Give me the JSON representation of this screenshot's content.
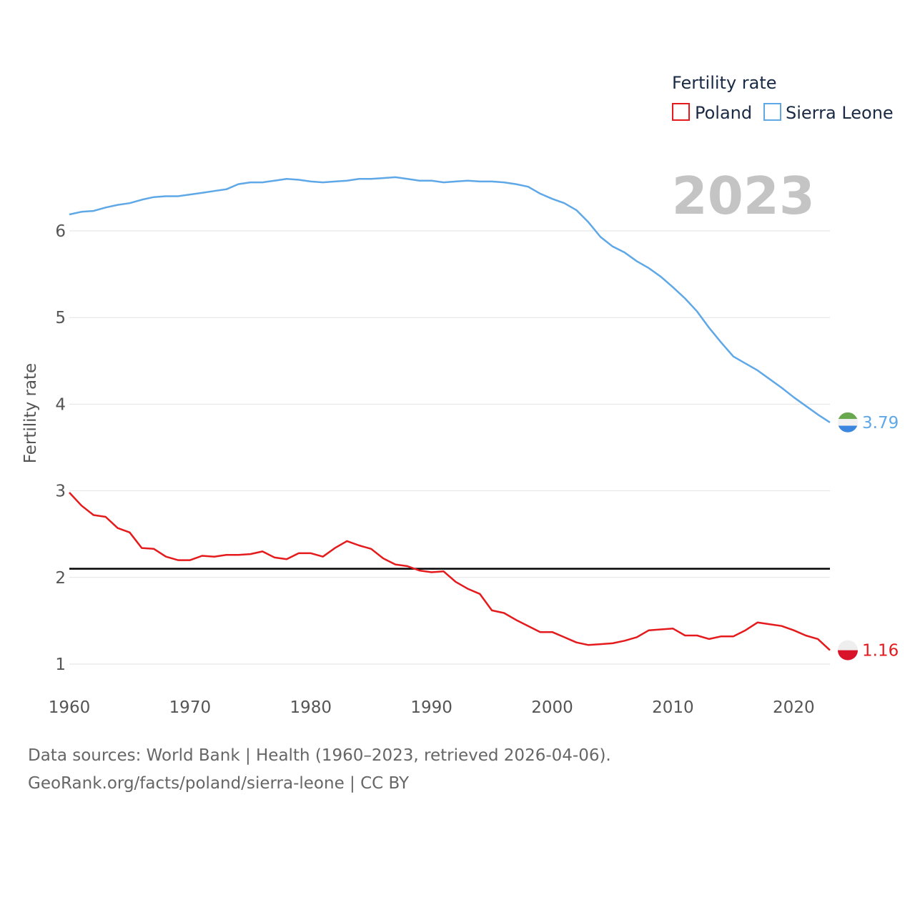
{
  "colors": {
    "poland": "#e41a1c",
    "sierra_leone": "#5fa8e8",
    "replacement_line": "#000000",
    "grid": "#e2e2e2",
    "year_text": "#c4c4c4"
  },
  "chart_data": {
    "type": "line",
    "title": "",
    "xlabel": "",
    "ylabel": "Fertility rate",
    "xlim": [
      1960,
      2023
    ],
    "ylim": [
      0.8,
      6.7
    ],
    "x_ticks": [
      1960,
      1970,
      1980,
      1990,
      2000,
      2010,
      2020
    ],
    "y_ticks": [
      1,
      2,
      3,
      4,
      5,
      6
    ],
    "x_tick_labels": [
      "1960",
      "1970",
      "1980",
      "1990",
      "2000",
      "2010",
      "2020"
    ],
    "y_tick_labels": [
      "1",
      "2",
      "3",
      "4",
      "5",
      "6"
    ],
    "current_year": "2023",
    "legend": {
      "title": "Fertility rate",
      "position": "top-right",
      "entries": [
        "Poland",
        "Sierra Leone"
      ]
    },
    "reference_line": {
      "y": 2.1,
      "color": "#000000"
    },
    "x": [
      1960,
      1961,
      1962,
      1963,
      1964,
      1965,
      1966,
      1967,
      1968,
      1969,
      1970,
      1971,
      1972,
      1973,
      1974,
      1975,
      1976,
      1977,
      1978,
      1979,
      1980,
      1981,
      1982,
      1983,
      1984,
      1985,
      1986,
      1987,
      1988,
      1989,
      1990,
      1991,
      1992,
      1993,
      1994,
      1995,
      1996,
      1997,
      1998,
      1999,
      2000,
      2001,
      2002,
      2003,
      2004,
      2005,
      2006,
      2007,
      2008,
      2009,
      2010,
      2011,
      2012,
      2013,
      2014,
      2015,
      2016,
      2017,
      2018,
      2019,
      2020,
      2021,
      2022,
      2023
    ],
    "series": [
      {
        "name": "Poland",
        "color": "#e41a1c",
        "end_label": "1.16",
        "values": [
          2.98,
          2.83,
          2.72,
          2.7,
          2.57,
          2.52,
          2.34,
          2.33,
          2.24,
          2.2,
          2.2,
          2.25,
          2.24,
          2.26,
          2.26,
          2.27,
          2.3,
          2.23,
          2.21,
          2.28,
          2.28,
          2.24,
          2.34,
          2.42,
          2.37,
          2.33,
          2.22,
          2.15,
          2.13,
          2.08,
          2.06,
          2.07,
          1.95,
          1.87,
          1.81,
          1.62,
          1.59,
          1.51,
          1.44,
          1.37,
          1.37,
          1.31,
          1.25,
          1.22,
          1.23,
          1.24,
          1.27,
          1.31,
          1.39,
          1.4,
          1.41,
          1.33,
          1.33,
          1.29,
          1.32,
          1.32,
          1.39,
          1.48,
          1.46,
          1.44,
          1.39,
          1.33,
          1.29,
          1.16
        ]
      },
      {
        "name": "Sierra Leone",
        "color": "#5fa8e8",
        "end_label": "3.79",
        "values": [
          6.19,
          6.22,
          6.23,
          6.27,
          6.3,
          6.32,
          6.36,
          6.39,
          6.4,
          6.4,
          6.42,
          6.44,
          6.46,
          6.48,
          6.54,
          6.56,
          6.56,
          6.58,
          6.6,
          6.59,
          6.57,
          6.56,
          6.57,
          6.58,
          6.6,
          6.6,
          6.61,
          6.62,
          6.6,
          6.58,
          6.58,
          6.56,
          6.57,
          6.58,
          6.57,
          6.57,
          6.56,
          6.54,
          6.51,
          6.43,
          6.37,
          6.32,
          6.24,
          6.1,
          5.93,
          5.82,
          5.75,
          5.65,
          5.57,
          5.47,
          5.35,
          5.22,
          5.07,
          4.88,
          4.71,
          4.55,
          4.47,
          4.39,
          4.29,
          4.19,
          4.08,
          3.98,
          3.88,
          3.79
        ]
      }
    ]
  },
  "footer": {
    "line1": "Data sources: World Bank | Health (1960–2023, retrieved 2026-04-06).",
    "line2": "GeoRank.org/facts/poland/sierra-leone | CC BY"
  }
}
